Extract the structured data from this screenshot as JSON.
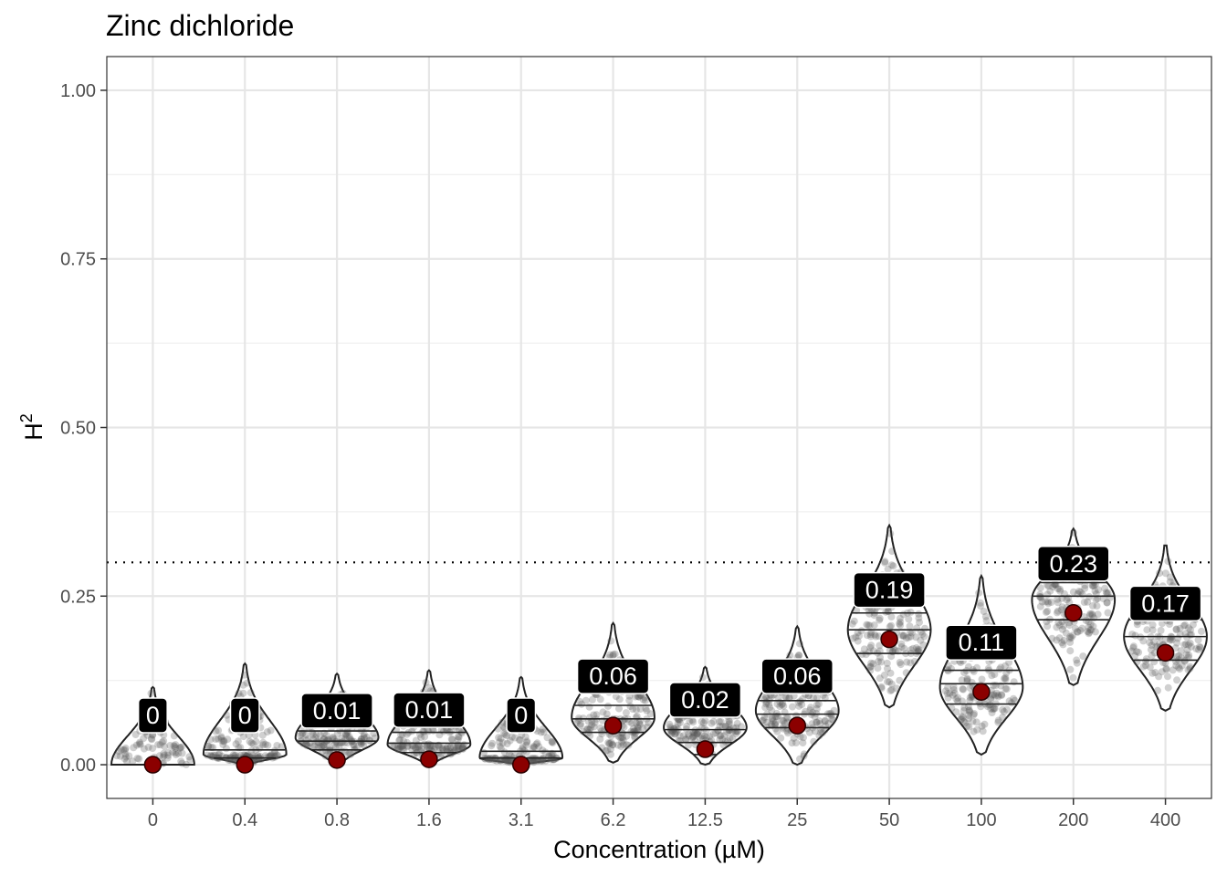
{
  "chart_data": {
    "type": "violin",
    "title": "Zinc dichloride",
    "xlabel": "Concentration (µM)",
    "ylabel_main": "H",
    "ylabel_sup": "2",
    "ylim": [
      -0.05,
      1.05
    ],
    "yticks": [
      0.0,
      0.25,
      0.5,
      0.75,
      1.0
    ],
    "ytick_labels": [
      "0.00",
      "0.25",
      "0.50",
      "0.75",
      "1.00"
    ],
    "threshold": 0.3,
    "categories": [
      "0",
      "0.4",
      "0.8",
      "1.6",
      "3.1",
      "6.2",
      "12.5",
      "25",
      "50",
      "100",
      "200",
      "400"
    ],
    "point_estimates": [
      0.0,
      0.0,
      0.007,
      0.008,
      0.0,
      0.058,
      0.023,
      0.058,
      0.186,
      0.108,
      0.225,
      0.166
    ],
    "labels": [
      "0",
      "0",
      "0.01",
      "0.01",
      "0",
      "0.06",
      "0.02",
      "0.06",
      "0.19",
      "0.11",
      "0.23",
      "0.17"
    ],
    "dist_min": [
      0.0,
      0.0,
      0.0,
      0.0,
      0.0,
      0.003,
      0.0,
      0.0,
      0.085,
      0.015,
      0.118,
      0.08
    ],
    "dist_max": [
      0.115,
      0.15,
      0.135,
      0.14,
      0.13,
      0.21,
      0.145,
      0.205,
      0.355,
      0.28,
      0.35,
      0.325
    ],
    "dist_mode": [
      0.0,
      0.015,
      0.04,
      0.03,
      0.01,
      0.07,
      0.055,
      0.08,
      0.2,
      0.115,
      0.245,
      0.19
    ],
    "quartiles": [
      [
        0.0,
        0.0,
        0.0
      ],
      [
        0.002,
        0.01,
        0.022
      ],
      [
        0.022,
        0.035,
        0.05
      ],
      [
        0.018,
        0.032,
        0.048
      ],
      [
        0.002,
        0.01,
        0.02
      ],
      [
        0.048,
        0.068,
        0.088
      ],
      [
        0.015,
        0.033,
        0.052
      ],
      [
        0.055,
        0.075,
        0.095
      ],
      [
        0.165,
        0.2,
        0.225
      ],
      [
        0.09,
        0.12,
        0.14
      ],
      [
        0.215,
        0.25,
        0.27
      ],
      [
        0.155,
        0.19,
        0.215
      ]
    ]
  }
}
